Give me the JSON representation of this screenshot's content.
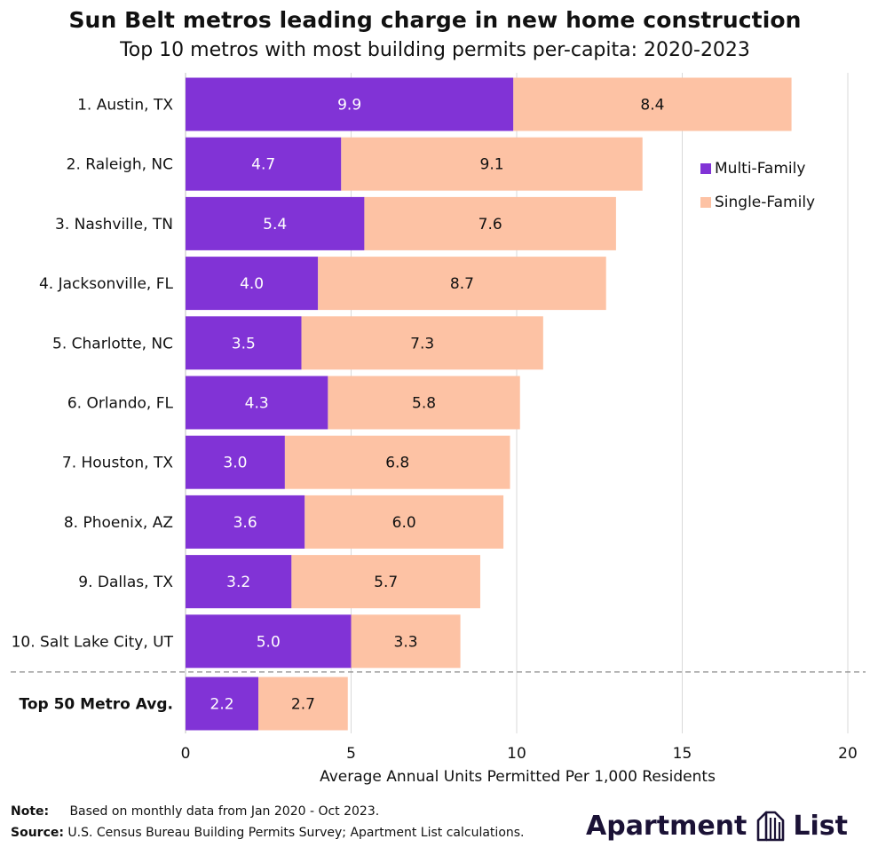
{
  "title": "Sun Belt metros leading charge in new home construction",
  "subtitle": "Top 10 metros with most building permits per-capita: 2020-2023",
  "colors": {
    "multi_family": "#8133d6",
    "single_family": "#fdc2a4",
    "grid": "#d9d9d9",
    "divider": "#888888"
  },
  "chart_data": {
    "type": "bar",
    "orientation": "horizontal",
    "stacked": true,
    "categories": [
      "1. Austin, TX",
      "2. Raleigh, NC",
      "3. Nashville, TN",
      "4. Jacksonville, FL",
      "5. Charlotte, NC",
      "6. Orlando, FL",
      "7. Houston, TX",
      "8. Phoenix, AZ",
      "9. Dallas, TX",
      "10. Salt Lake City, UT",
      "Top 50 Metro Avg."
    ],
    "series": [
      {
        "name": "Multi-Family",
        "values": [
          9.9,
          4.7,
          5.4,
          4.0,
          3.5,
          4.3,
          3.0,
          3.6,
          3.2,
          5.0,
          2.2
        ],
        "labels": [
          "9.9",
          "4.7",
          "5.4",
          "4.0",
          "3.5",
          "4.3",
          "3.0",
          "3.6",
          "3.2",
          "5.0",
          "2.2"
        ]
      },
      {
        "name": "Single-Family",
        "values": [
          8.4,
          9.1,
          7.6,
          8.7,
          7.3,
          5.8,
          6.8,
          6.0,
          5.7,
          3.3,
          2.7
        ],
        "labels": [
          "8.4",
          "9.1",
          "7.6",
          "8.7",
          "7.3",
          "5.8",
          "6.8",
          "6.0",
          "5.7",
          "3.3",
          "2.7"
        ]
      }
    ],
    "xlabel": "Average Annual Units Permitted Per 1,000 Residents",
    "xlim": [
      0,
      20
    ],
    "xticks": [
      0,
      5,
      10,
      15,
      20
    ],
    "xtick_labels": [
      "0",
      "5",
      "10",
      "15",
      "20"
    ],
    "grid": true,
    "legend_position": "right",
    "highlight_category": "Top 50 Metro Avg."
  },
  "footer": {
    "note_label": "Note:",
    "note_text": "Based on monthly data from Jan 2020 - Oct 2023.",
    "source_label": "Source:",
    "source_text": "U.S. Census Bureau Building Permits Survey; Apartment List calculations."
  },
  "logo": {
    "left_text": "Apartment",
    "right_text": "List",
    "icon": "apartment-list-building-icon"
  }
}
